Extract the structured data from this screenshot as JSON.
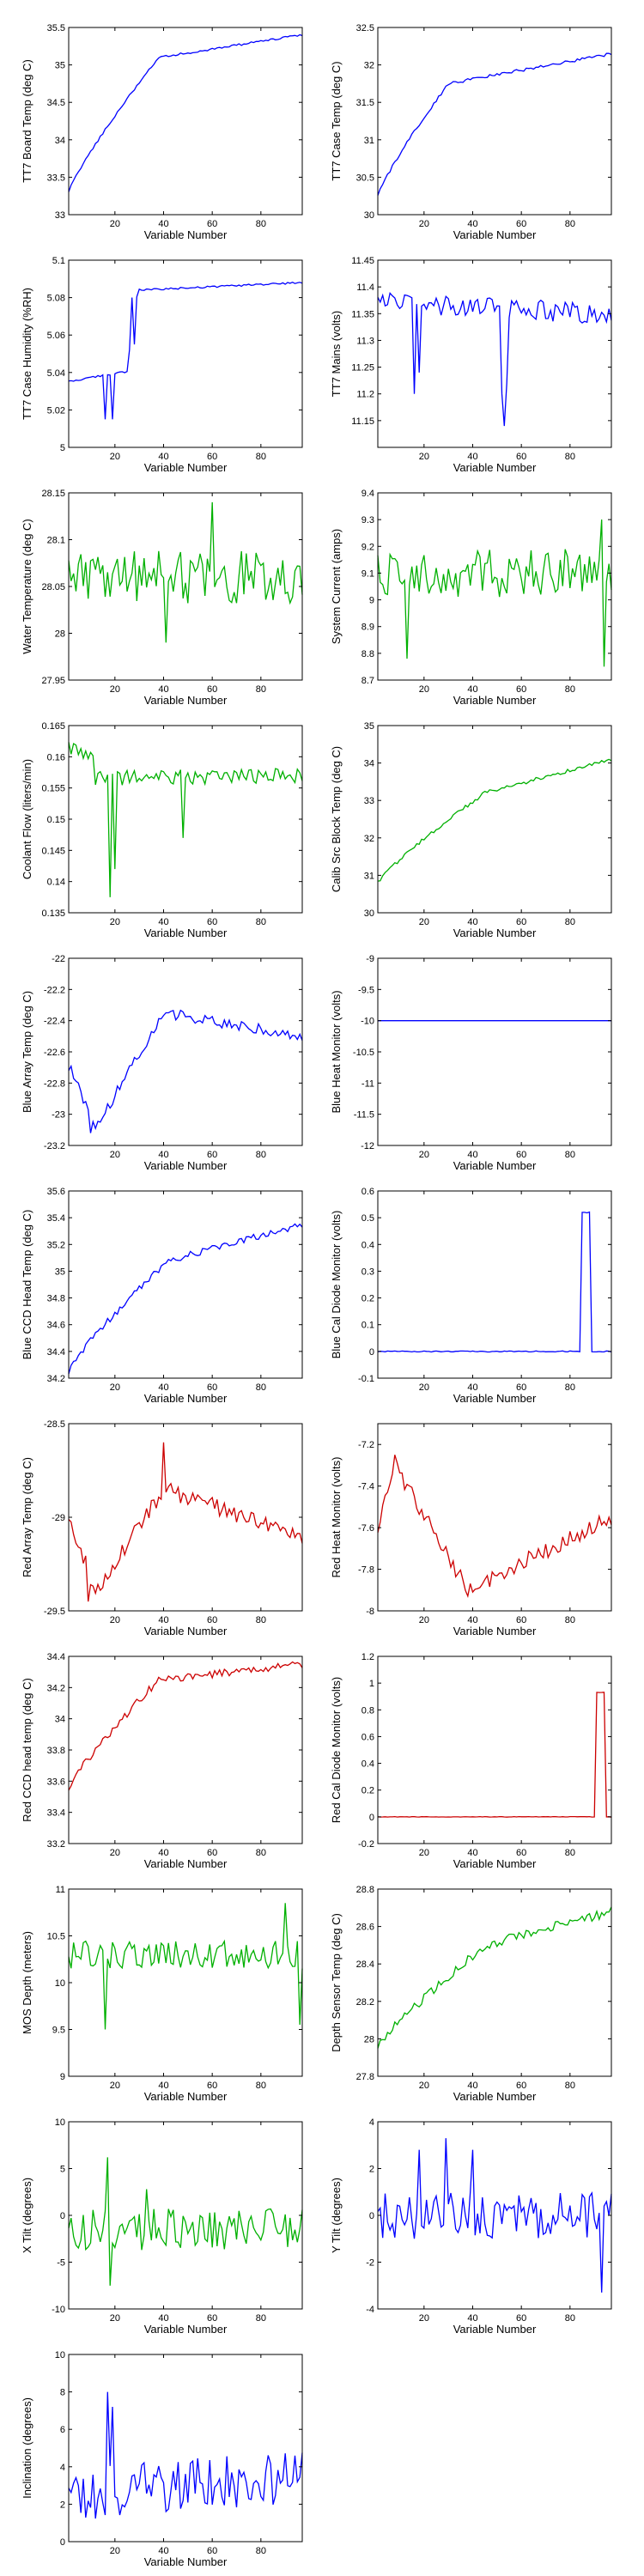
{
  "figure": {
    "x_axis_label": "Variable Number",
    "x_ticks": [
      20,
      40,
      60,
      80
    ],
    "x_range": [
      1,
      97
    ]
  },
  "colors": {
    "blue": "#0000ff",
    "green": "#00b000",
    "red": "#cc0000",
    "axes": "#000000"
  },
  "chart_data": [
    {
      "type": "line",
      "ylabel": "TT7 Board Temp (deg C)",
      "ylim": [
        33,
        35.5
      ],
      "yticks": [
        33,
        33.5,
        34,
        34.5,
        35,
        35.5
      ],
      "color": "blue",
      "shape": "rise_plateau",
      "start": 33.3,
      "level": 35.1,
      "end": 35.4,
      "knee": 38,
      "noise": 0.015,
      "spikes": []
    },
    {
      "type": "line",
      "ylabel": "TT7 Case Temp (deg C)",
      "ylim": [
        30,
        32.5
      ],
      "yticks": [
        30,
        30.5,
        31,
        31.5,
        32,
        32.5
      ],
      "color": "blue",
      "shape": "rise_plateau",
      "start": 30.25,
      "level": 31.75,
      "end": 32.15,
      "knee": 30,
      "noise": 0.02,
      "spikes": []
    },
    {
      "type": "line",
      "ylabel": "TT7 Case Humidity (%RH)",
      "ylim": [
        5,
        5.1
      ],
      "yticks": [
        5,
        5.02,
        5.04,
        5.06,
        5.08,
        5.1
      ],
      "color": "blue",
      "shape": "steps",
      "start": 5.035,
      "level": 5.084,
      "end": 5.088,
      "knee": 30,
      "noise": 0.0005,
      "spikes": [
        [
          16,
          5.015
        ],
        [
          19,
          5.015
        ],
        [
          26,
          5.052
        ],
        [
          28,
          5.055
        ]
      ]
    },
    {
      "type": "line",
      "ylabel": "TT7 Mains  (volts)",
      "ylim": [
        11.1,
        11.45
      ],
      "yticks": [
        11.15,
        11.2,
        11.25,
        11.3,
        11.35,
        11.4,
        11.45
      ],
      "color": "blue",
      "shape": "flat",
      "start": 11.37,
      "level": 11.37,
      "end": 11.35,
      "knee": 0,
      "noise": 0.02,
      "spikes": [
        [
          16,
          11.2
        ],
        [
          18,
          11.24
        ],
        [
          52,
          11.2
        ],
        [
          53,
          11.14
        ],
        [
          54,
          11.22
        ]
      ]
    },
    {
      "type": "line",
      "ylabel": "Water Temperature (deg C)",
      "ylim": [
        27.95,
        28.15
      ],
      "yticks": [
        27.95,
        28,
        28.05,
        28.1,
        28.15
      ],
      "color": "green",
      "shape": "flat",
      "start": 28.06,
      "level": 28.06,
      "end": 28.06,
      "knee": 0,
      "noise": 0.028,
      "spikes": [
        [
          41,
          27.99
        ],
        [
          60,
          28.14
        ]
      ]
    },
    {
      "type": "line",
      "ylabel": "System Current (amps)",
      "ylim": [
        8.7,
        9.4
      ],
      "yticks": [
        8.7,
        8.8,
        8.9,
        9,
        9.1,
        9.2,
        9.3,
        9.4
      ],
      "color": "green",
      "shape": "flat",
      "start": 9.1,
      "level": 9.05,
      "end": 9.1,
      "knee": 0,
      "noise": 0.09,
      "spikes": [
        [
          13,
          8.78
        ],
        [
          93,
          9.3
        ],
        [
          94,
          8.75
        ]
      ]
    },
    {
      "type": "line",
      "ylabel": "Coolant Flow (liters/min)",
      "ylim": [
        0.135,
        0.165
      ],
      "yticks": [
        0.135,
        0.14,
        0.145,
        0.15,
        0.155,
        0.16,
        0.165
      ],
      "color": "green",
      "shape": "drop",
      "start": 0.1615,
      "level": 0.1565,
      "end": 0.157,
      "knee": 12,
      "noise": 0.0012,
      "spikes": [
        [
          18,
          0.1375
        ],
        [
          20,
          0.142
        ],
        [
          48,
          0.147
        ]
      ]
    },
    {
      "type": "line",
      "ylabel": "Calib Src Block Temp (deg C)",
      "ylim": [
        30,
        35
      ],
      "yticks": [
        30,
        31,
        32,
        33,
        34,
        35
      ],
      "color": "green",
      "shape": "rise_plateau",
      "start": 30.8,
      "level": 33.2,
      "end": 34.1,
      "knee": 45,
      "noise": 0.05,
      "spikes": []
    },
    {
      "type": "line",
      "ylabel": "Blue Array Temp (deg C)",
      "ylim": [
        -23.2,
        -22
      ],
      "yticks": [
        -23.2,
        -23,
        -22.8,
        -22.6,
        -22.4,
        -22.2,
        -22
      ],
      "color": "blue",
      "shape": "dip_rise",
      "start": -22.65,
      "level": -22.35,
      "end": -22.5,
      "knee": 40,
      "noise": 0.035,
      "spikes": [
        [
          10,
          -23.12
        ]
      ]
    },
    {
      "type": "line",
      "ylabel": "Blue Heat Monitor (volts)",
      "ylim": [
        -12,
        -9
      ],
      "yticks": [
        -12,
        -11.5,
        -11,
        -10.5,
        -10,
        -9.5,
        -9
      ],
      "color": "blue",
      "shape": "flat",
      "start": -10,
      "level": -10,
      "end": -10,
      "knee": 0,
      "noise": 0,
      "spikes": []
    },
    {
      "type": "line",
      "ylabel": "Blue CCD Head Temp (deg C)",
      "ylim": [
        34.2,
        35.6
      ],
      "yticks": [
        34.2,
        34.4,
        34.6,
        34.8,
        35,
        35.2,
        35.4,
        35.6
      ],
      "color": "blue",
      "shape": "rise_plateau",
      "start": 34.25,
      "level": 35.08,
      "end": 35.35,
      "knee": 42,
      "noise": 0.025,
      "spikes": []
    },
    {
      "type": "line",
      "ylabel": "Blue Cal Diode Monitor (volts)",
      "ylim": [
        -0.1,
        0.6
      ],
      "yticks": [
        -0.1,
        0,
        0.1,
        0.2,
        0.3,
        0.4,
        0.5,
        0.6
      ],
      "color": "blue",
      "shape": "pulse",
      "start": 0,
      "level": 0,
      "end": 0,
      "knee": 0,
      "noise": 0.002,
      "pulse": [
        85,
        88,
        0.52
      ],
      "spikes": []
    },
    {
      "type": "line",
      "ylabel": "Red Array Temp (deg C)",
      "ylim": [
        -29.5,
        -28.5
      ],
      "yticks": [
        -29.5,
        -29,
        -28.5
      ],
      "color": "red",
      "shape": "dip_rise",
      "start": -28.95,
      "level": -28.85,
      "end": -29.1,
      "knee": 40,
      "noise": 0.045,
      "spikes": [
        [
          9,
          -29.45
        ],
        [
          40,
          -28.6
        ]
      ]
    },
    {
      "type": "line",
      "ylabel": "Red Heat Monitor (volts)",
      "ylim": [
        -8,
        -7.1
      ],
      "yticks": [
        -8,
        -7.8,
        -7.6,
        -7.4,
        -7.2
      ],
      "color": "red",
      "shape": "peak_recover",
      "start": -7.65,
      "level": -7.9,
      "end": -7.55,
      "knee": 38,
      "noise": 0.04,
      "spikes": [
        [
          8,
          -7.25
        ]
      ]
    },
    {
      "type": "line",
      "ylabel": "Red CCD head temp (deg C)",
      "ylim": [
        33.2,
        34.4
      ],
      "yticks": [
        33.2,
        33.4,
        33.6,
        33.8,
        34,
        34.2,
        34.4
      ],
      "color": "red",
      "shape": "rise_plateau",
      "start": 33.55,
      "level": 34.25,
      "end": 34.35,
      "knee": 38,
      "noise": 0.025,
      "spikes": []
    },
    {
      "type": "line",
      "ylabel": "Red Cal Diode Monitor (volts)",
      "ylim": [
        -0.2,
        1.2
      ],
      "yticks": [
        -0.2,
        0,
        0.2,
        0.4,
        0.6,
        0.8,
        1,
        1.2
      ],
      "color": "red",
      "shape": "pulse",
      "start": 0,
      "level": 0,
      "end": 0,
      "knee": 0,
      "noise": 0.002,
      "pulse": [
        91,
        94,
        0.93
      ],
      "spikes": []
    },
    {
      "type": "line",
      "ylabel": "MOS Depth  (meters)",
      "ylim": [
        9,
        11
      ],
      "yticks": [
        9,
        9.5,
        10,
        10.5,
        11
      ],
      "color": "green",
      "shape": "flat",
      "start": 10.3,
      "level": 10.35,
      "end": 10.3,
      "knee": 0,
      "noise": 0.15,
      "spikes": [
        [
          16,
          9.5
        ],
        [
          96,
          9.55
        ],
        [
          90,
          10.85
        ]
      ]
    },
    {
      "type": "line",
      "ylabel": "Depth Sensor Temp (deg C)",
      "ylim": [
        27.8,
        28.8
      ],
      "yticks": [
        27.8,
        28,
        28.2,
        28.4,
        28.6,
        28.8
      ],
      "color": "green",
      "shape": "rise_plateau",
      "start": 27.95,
      "level": 28.5,
      "end": 28.68,
      "knee": 45,
      "noise": 0.025,
      "spikes": []
    },
    {
      "type": "line",
      "ylabel": "X Tilt  (degrees)",
      "ylim": [
        -10,
        10
      ],
      "yticks": [
        -10,
        -5,
        0,
        5,
        10
      ],
      "color": "green",
      "shape": "flat",
      "start": -1.5,
      "level": -1.5,
      "end": -1.5,
      "knee": 0,
      "noise": 2.2,
      "spikes": [
        [
          17,
          6.2
        ],
        [
          18,
          -7.5
        ],
        [
          33,
          2.8
        ]
      ]
    },
    {
      "type": "line",
      "ylabel": "Y Tilt  (degrees)",
      "ylim": [
        -4,
        4
      ],
      "yticks": [
        -4,
        -2,
        0,
        2,
        4
      ],
      "color": "blue",
      "shape": "flat",
      "start": 0,
      "level": 0,
      "end": 0,
      "knee": 0,
      "noise": 1.0,
      "spikes": [
        [
          18,
          2.8
        ],
        [
          29,
          3.3
        ],
        [
          40,
          2.8
        ],
        [
          93,
          -3.3
        ]
      ]
    },
    {
      "type": "line",
      "ylabel": "Inclination  (degrees)",
      "ylim": [
        0,
        10
      ],
      "yticks": [
        0,
        2,
        4,
        6,
        8,
        10
      ],
      "color": "blue",
      "shape": "flat",
      "start": 2.5,
      "level": 3.2,
      "end": 3.5,
      "knee": 0,
      "noise": 1.4,
      "spikes": [
        [
          17,
          8.0
        ],
        [
          19,
          7.2
        ]
      ]
    }
  ]
}
